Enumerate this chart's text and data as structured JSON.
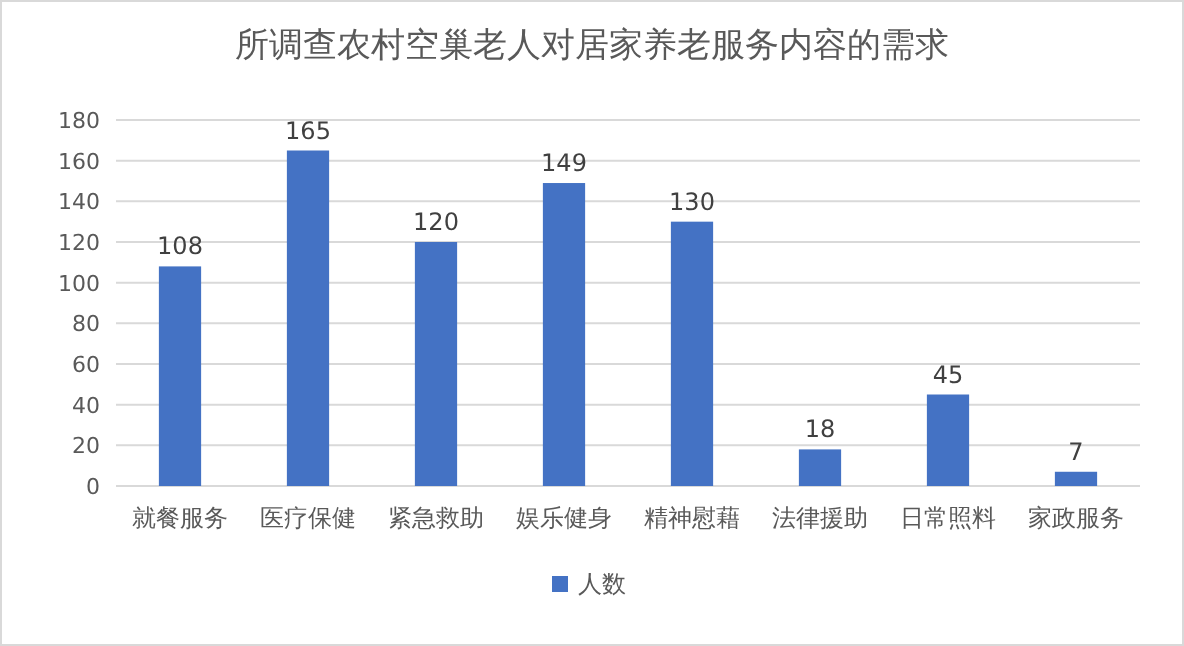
{
  "chart_data": {
    "type": "bar",
    "title": "所调查农村空巢老人对居家养老服务内容的需求",
    "categories": [
      "就餐服务",
      "医疗保健",
      "紧急救助",
      "娱乐健身",
      "精神慰藉",
      "法律援助",
      "日常照料",
      "家政服务"
    ],
    "series": [
      {
        "name": "人数",
        "color": "#4472c4",
        "values": [
          108,
          165,
          120,
          149,
          130,
          18,
          45,
          7
        ]
      }
    ],
    "ylim": [
      0,
      180
    ],
    "yticks": [
      0,
      20,
      40,
      60,
      80,
      100,
      120,
      140,
      160,
      180
    ],
    "grid": "y",
    "legend": "bottom",
    "data_labels": true
  }
}
